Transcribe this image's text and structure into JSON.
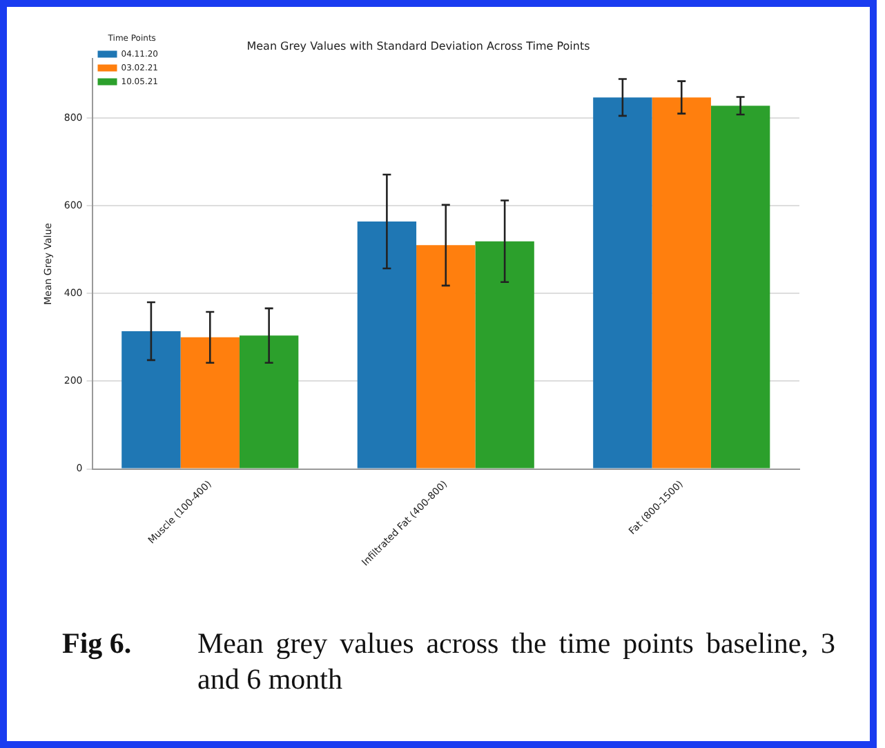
{
  "chart_data": {
    "type": "bar",
    "title": "Mean Grey Values with Standard Deviation Across Time Points",
    "ylabel": "Mean Grey Value",
    "legend_title": "Time Points",
    "categories": [
      "Muscle (100-400)",
      "Infiltrated Fat (400-800)",
      "Fat (800-1500)"
    ],
    "series": [
      {
        "name": "04.11.20",
        "color": "#1f77b4",
        "values": [
          314,
          564,
          847
        ],
        "errors": [
          66,
          107,
          42
        ]
      },
      {
        "name": "03.02.21",
        "color": "#ff7f0e",
        "values": [
          300,
          510,
          847
        ],
        "errors": [
          58,
          92,
          37
        ]
      },
      {
        "name": "10.05.21",
        "color": "#2ca02c",
        "values": [
          304,
          519,
          828
        ],
        "errors": [
          62,
          93,
          20
        ]
      }
    ],
    "ylim": [
      0,
      935
    ],
    "yticks": [
      0,
      200,
      400,
      600,
      800
    ],
    "grid": "y",
    "legend": "top left",
    "annotations": [
      "Fig 6.",
      "Mean grey values across the time points baseline, 3 and 6 month"
    ]
  }
}
